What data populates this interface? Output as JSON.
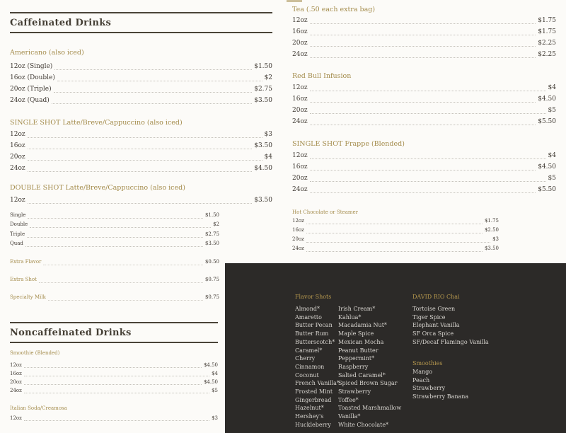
{
  "colors": {
    "background": "#fcfbf8",
    "gold_accent": "#a48c4c",
    "dark_panel_bg": "#2c2a28",
    "panel_text": "#d7d4cf",
    "body_text": "#403a33",
    "rule_color": "#4a4438"
  },
  "menu": {
    "left": {
      "caffeinated_header": "Caffeinated Drinks",
      "americano": {
        "title": "Americano (also iced)",
        "rows": [
          {
            "label": "12oz (Single)",
            "price": "$1.50"
          },
          {
            "label": "16oz (Double)",
            "price": "$2"
          },
          {
            "label": "20oz (Triple)",
            "price": "$2.75"
          },
          {
            "label": "24oz (Quad)",
            "price": "$3.50"
          }
        ]
      },
      "single_shot": {
        "title": "SINGLE SHOT Latte/Breve/Cappuccino (also iced)",
        "rows": [
          {
            "label": "12oz",
            "price": "$3"
          },
          {
            "label": "16oz",
            "price": "$3.50"
          },
          {
            "label": "20oz",
            "price": "$4"
          },
          {
            "label": "24oz",
            "price": "$4.50"
          }
        ]
      },
      "double_shot": {
        "title": "DOUBLE SHOT Latte/Breve/Cappuccino (also iced)",
        "rows": [
          {
            "label": "12oz",
            "price": "$3.50"
          }
        ],
        "subrows": [
          {
            "label": "Single",
            "price": "$1.50"
          },
          {
            "label": "Double",
            "price": "$2"
          },
          {
            "label": "Triple",
            "price": "$2.75"
          },
          {
            "label": "Quad",
            "price": "$3.50"
          }
        ]
      },
      "extras": [
        {
          "label": "Extra Flavor",
          "price": "$0.50"
        },
        {
          "label": "Extra Shot",
          "price": "$0.75"
        },
        {
          "label": "Specialty Milk",
          "price": "$0.75"
        }
      ],
      "noncaffeinated_header": "Noncaffeinated Drinks",
      "smoothie": {
        "title": "Smoothie (Blended)",
        "rows": [
          {
            "label": "12oz",
            "price": "$4.50"
          },
          {
            "label": "16oz",
            "price": "$4"
          },
          {
            "label": "20oz",
            "price": "$4.50"
          },
          {
            "label": "24oz",
            "price": "$5"
          }
        ]
      },
      "italian_soda": {
        "title": "Italian Soda/Creamosa",
        "rows": [
          {
            "label": "12oz",
            "price": "$3"
          }
        ]
      }
    },
    "right": {
      "tea": {
        "title": "Tea (.50 each extra bag)",
        "rows": [
          {
            "label": "12oz",
            "price": "$1.75"
          },
          {
            "label": "16oz",
            "price": "$1.75"
          },
          {
            "label": "20oz",
            "price": "$2.25"
          },
          {
            "label": "24oz",
            "price": "$2.25"
          }
        ]
      },
      "red_bull": {
        "title": "Red Bull Infusion",
        "rows": [
          {
            "label": "12oz",
            "price": "$4"
          },
          {
            "label": "16oz",
            "price": "$4.50"
          },
          {
            "label": "20oz",
            "price": "$5"
          },
          {
            "label": "24oz",
            "price": "$5.50"
          }
        ]
      },
      "frappe": {
        "title": "SINGLE SHOT Frappe (Blended)",
        "rows": [
          {
            "label": "12oz",
            "price": "$4"
          },
          {
            "label": "16oz",
            "price": "$4.50"
          },
          {
            "label": "20oz",
            "price": "$5"
          },
          {
            "label": "24oz",
            "price": "$5.50"
          }
        ]
      },
      "hot_chocolate": {
        "title": "Hot Chocolate or Steamer",
        "rows": [
          {
            "label": "12oz",
            "price": "$1.75"
          },
          {
            "label": "16oz",
            "price": "$2.50"
          },
          {
            "label": "20oz",
            "price": "$3"
          },
          {
            "label": "24oz",
            "price": "$3.50"
          }
        ]
      },
      "panel": {
        "flavor_shots": {
          "title": "Flavor Shots",
          "col1": [
            "Almond*",
            "Amaretto",
            "Butter Pecan",
            "Butter Rum",
            "Butterscotch*",
            "Caramel*",
            "Cherry",
            "Cinnamon",
            "Coconut",
            "French Vanilla*",
            "Frosted Mint",
            "Gingerbread",
            "Hazelnut*",
            "Hershey's",
            "Huckleberry"
          ],
          "col2": [
            "Irish Cream*",
            "Kahlua*",
            "Macadamia Nut*",
            "Maple Spice",
            "Mexican Mocha",
            "Peanut Butter",
            "Peppermint*",
            "Raspberry",
            "Salted Caramel*",
            "Spiced Brown Sugar",
            "Strawberry",
            "Toffee*",
            "Toasted Marshmallow",
            "Vanilla*",
            "White Chocolate*"
          ]
        },
        "david_rio": {
          "title": "DAVID RIO Chai",
          "items": [
            "Tortoise Green",
            "Tiger Spice",
            "Elephant Vanilla",
            "SF Orca Spice",
            "SF/Decaf Flamingo Vanilla"
          ]
        },
        "smoothies": {
          "title": "Smoothies",
          "items": [
            "Mango",
            "Peach",
            "Strawberry",
            "Strawberry Banana"
          ]
        }
      }
    }
  }
}
